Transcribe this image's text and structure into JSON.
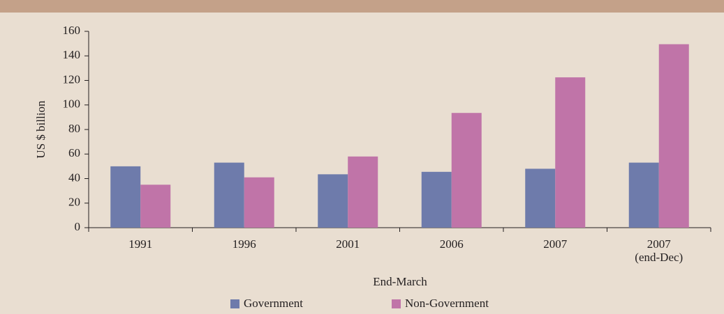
{
  "chart_data": {
    "type": "bar",
    "categories": [
      "1991",
      "1996",
      "2001",
      "2006",
      "2007",
      "2007\n(end-Dec)"
    ],
    "series": [
      {
        "name": "Government",
        "color": "#6e7bab",
        "values": [
          50,
          53,
          43.5,
          45.5,
          48,
          53
        ]
      },
      {
        "name": "Non-Government",
        "color": "#c074a8",
        "values": [
          35,
          41,
          58,
          93.5,
          122.5,
          149.5
        ]
      }
    ],
    "xlabel": "End-March",
    "ylabel": "US $ billion",
    "ylim": [
      0,
      160
    ],
    "yticks": [
      0,
      20,
      40,
      60,
      80,
      100,
      120,
      140,
      160
    ],
    "legend": "bottom"
  }
}
